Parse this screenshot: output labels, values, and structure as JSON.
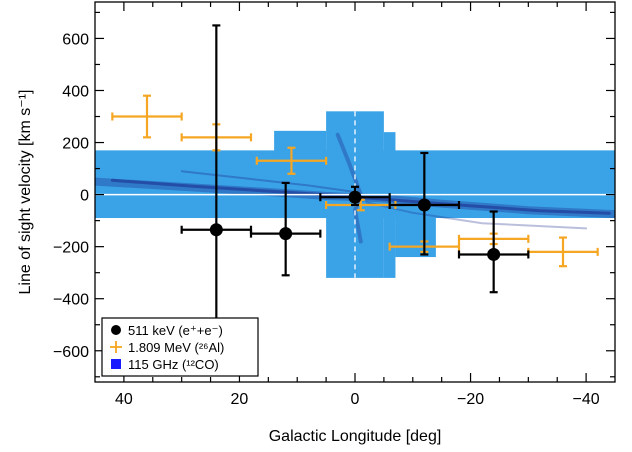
{
  "chart_data": {
    "type": "scatter",
    "xlabel": "Galactic Longitude [deg]",
    "ylabel": "Line of sight velocity [km s⁻¹]",
    "xlim": [
      45,
      -45
    ],
    "ylim": [
      -720,
      740
    ],
    "x_ticks": [
      40,
      20,
      0,
      -20,
      -40
    ],
    "x_tick_labels": [
      "40",
      "20",
      "0",
      "−20",
      "−40"
    ],
    "y_ticks": [
      600,
      400,
      200,
      0,
      -200,
      -400,
      -600
    ],
    "y_tick_labels": [
      "600",
      "400",
      "200",
      "0",
      "−200",
      "−400",
      "−600"
    ],
    "series": [
      {
        "name": "511 keV (e⁺+e⁻)",
        "marker": "filled-circle",
        "color": "#000000",
        "points": [
          {
            "x": 24,
            "y": -135,
            "xerr": 6,
            "yerr_low": 370,
            "yerr_high": 785
          },
          {
            "x": 12,
            "y": -150,
            "xerr": 6,
            "yerr_low": 160,
            "yerr_high": 195
          },
          {
            "x": 0,
            "y": -10,
            "xerr": 6,
            "yerr_low": 30,
            "yerr_high": 40
          },
          {
            "x": -12,
            "y": -40,
            "xerr": 6,
            "yerr_low": 190,
            "yerr_high": 200
          },
          {
            "x": -24,
            "y": -230,
            "xerr": 6,
            "yerr_low": 145,
            "yerr_high": 165
          }
        ]
      },
      {
        "name": "1.809 MeV (²⁶Al)",
        "marker": "plus",
        "color": "#f5a623",
        "points": [
          {
            "x": 36,
            "y": 300,
            "xerr": 6,
            "yerr_low": 80,
            "yerr_high": 80
          },
          {
            "x": 24,
            "y": 220,
            "xerr": 6,
            "yerr_low": 50,
            "yerr_high": 50
          },
          {
            "x": 11,
            "y": 130,
            "xerr": 6,
            "yerr_low": 50,
            "yerr_high": 50
          },
          {
            "x": -1,
            "y": -40,
            "xerr": 6,
            "yerr_low": 20,
            "yerr_high": 20
          },
          {
            "x": -12,
            "y": -200,
            "xerr": 6,
            "yerr_low": 20,
            "yerr_high": 20
          },
          {
            "x": -24,
            "y": -170,
            "xerr": 6,
            "yerr_low": 20,
            "yerr_high": 20
          },
          {
            "x": -36,
            "y": -220,
            "xerr": 6,
            "yerr_low": 55,
            "yerr_high": 55
          }
        ]
      },
      {
        "name": "115 GHz (¹²CO)",
        "marker": "square",
        "color": "#1a1aff",
        "region_color": "#3aa3e8",
        "regions": [
          {
            "x0": 45,
            "x1": -45,
            "y0": -90,
            "y1": 170
          },
          {
            "x0": 14,
            "x1": 5,
            "y0": -90,
            "y1": 245
          },
          {
            "x0": 5,
            "x1": -5,
            "y0": -320,
            "y1": 320
          },
          {
            "x0": -5,
            "x1": -7,
            "y0": -320,
            "y1": 240
          },
          {
            "x0": -7,
            "x1": -14,
            "y0": -240,
            "y1": 85
          }
        ]
      }
    ],
    "legend": {
      "position": "bottom-left",
      "entries": [
        {
          "label": "511 keV (e⁺+e⁻)",
          "symbol": "filled-circle",
          "color": "#000000"
        },
        {
          "label": "1.809 MeV (²⁶Al)",
          "symbol": "plus",
          "color": "#f5a623"
        },
        {
          "label": "115 GHz (¹²CO)",
          "symbol": "square",
          "color": "#1a1aff"
        }
      ]
    },
    "grid": false
  }
}
